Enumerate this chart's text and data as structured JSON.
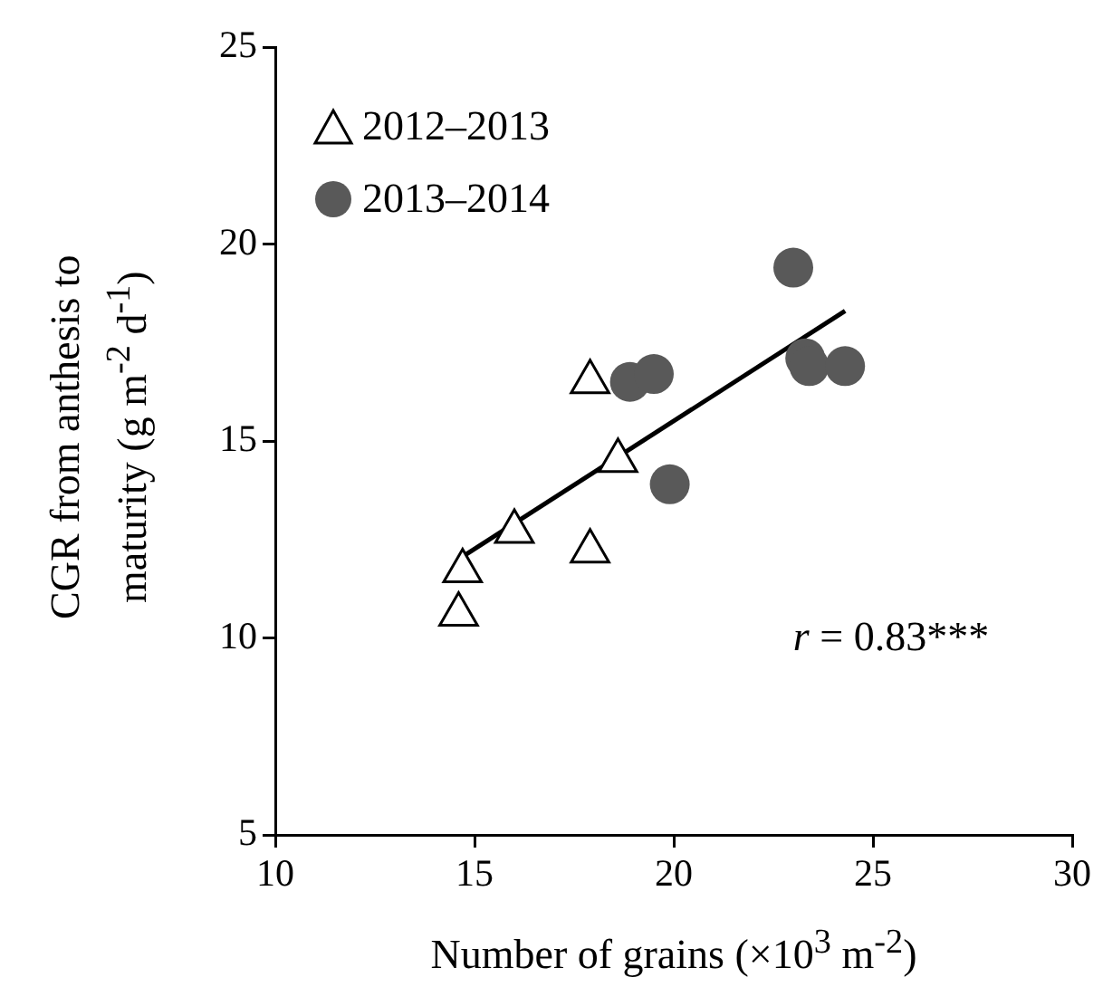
{
  "chart_data": {
    "type": "scatter",
    "xlabel": "Number of grains (×10$^{3}$ m$^{-2}$)",
    "ylabel": "CGR from anthesis to maturity (g m$^{-2}$ d$^{-1}$)",
    "xlim": [
      10,
      30
    ],
    "xticks": [
      10,
      15,
      20,
      25,
      30
    ],
    "ylim": [
      5,
      25
    ],
    "yticks": [
      5,
      10,
      15,
      20,
      25
    ],
    "grid": false,
    "legend": "top left",
    "annotations": [
      "r = 0.83***"
    ],
    "series": [
      {
        "name": "2012–2013",
        "type": "scatter",
        "marker": "triangle",
        "color": "#000000",
        "x": [
          14.6,
          14.7,
          16.0,
          17.9,
          17.9,
          18.6
        ],
        "values": [
          10.6,
          11.7,
          12.7,
          12.2,
          16.5,
          14.5
        ]
      },
      {
        "name": "2013–2014",
        "type": "scatter",
        "marker": "circle",
        "color": "#595959",
        "x": [
          18.9,
          19.5,
          19.9,
          23.0,
          23.3,
          23.4,
          24.3
        ],
        "values": [
          16.5,
          16.7,
          13.9,
          19.4,
          17.1,
          16.9,
          16.9
        ]
      },
      {
        "type": "line",
        "marker": "none",
        "color": "#000000",
        "x": [
          14.6,
          24.3
        ],
        "values": [
          12.0,
          18.3
        ]
      }
    ]
  }
}
